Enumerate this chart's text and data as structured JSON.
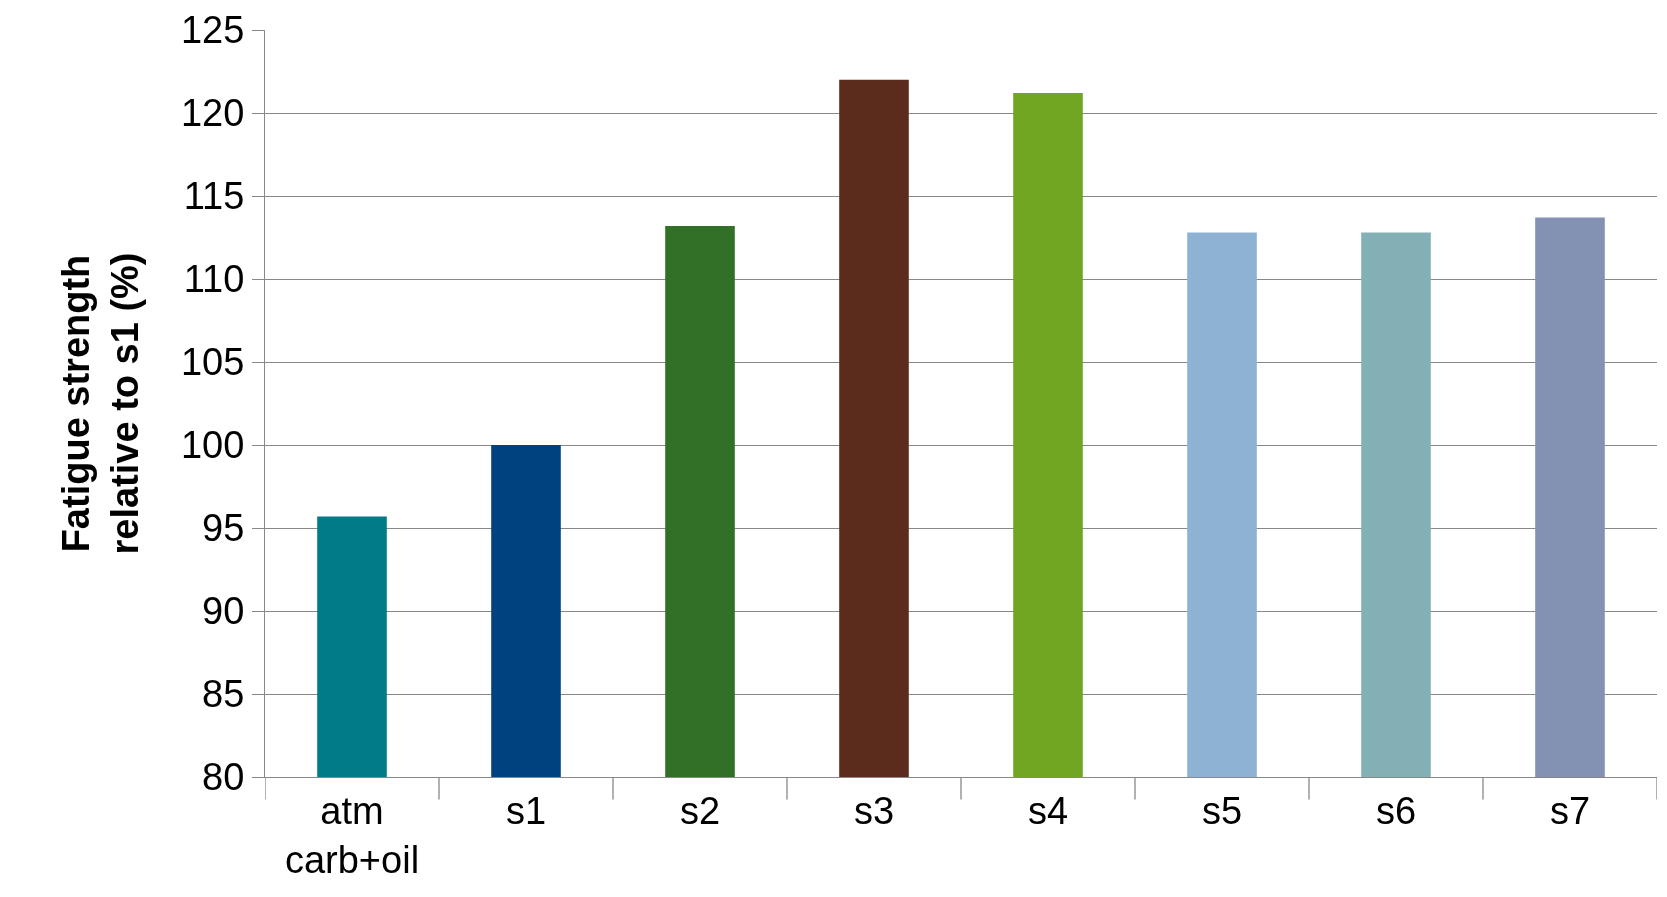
{
  "chart_data": {
    "type": "bar",
    "ylabel": "Fatigue strength\nrelative to s1 (%)",
    "categories": [
      "atm\ncarb+oil",
      "s1",
      "s2",
      "s3",
      "s4",
      "s5",
      "s6",
      "s7"
    ],
    "values": [
      95.7,
      100,
      113.2,
      122.0,
      121.2,
      112.8,
      112.8,
      113.7
    ],
    "colors": [
      "#007b87",
      "#00427f",
      "#317026",
      "#5b2b1b",
      "#71a622",
      "#8db2d4",
      "#83b0b5",
      "#8391b2"
    ],
    "ylim": [
      80,
      125
    ],
    "yticks": [
      80,
      85,
      90,
      95,
      100,
      105,
      110,
      115,
      120,
      125
    ],
    "grid": "y"
  }
}
